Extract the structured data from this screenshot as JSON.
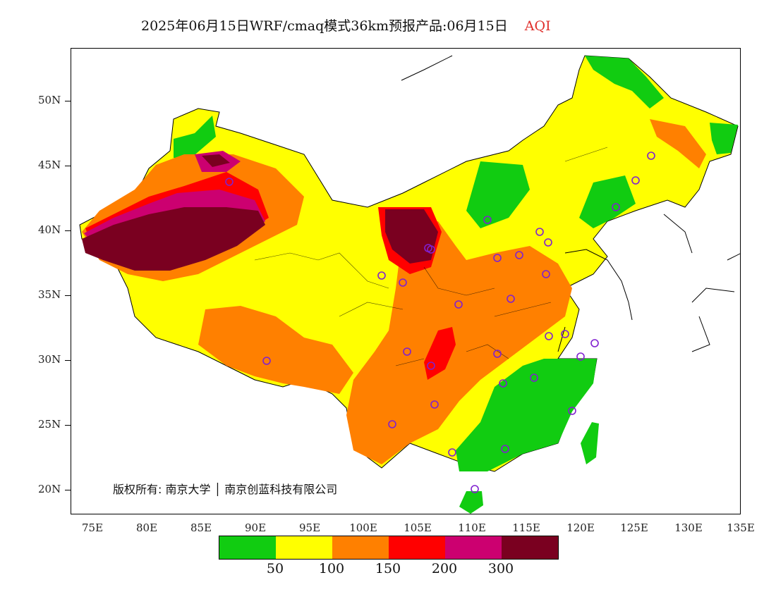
{
  "title": {
    "main": "2025年06月15日WRF/cmaq模式36km预报产品:06月15日",
    "variable": "AQI"
  },
  "axes": {
    "lat_labels": [
      "50N",
      "45N",
      "40N",
      "35N",
      "30N",
      "25N",
      "20N"
    ],
    "lon_labels": [
      "75E",
      "80E",
      "85E",
      "90E",
      "95E",
      "100E",
      "105E",
      "110E",
      "115E",
      "120E",
      "125E",
      "130E",
      "135E"
    ]
  },
  "copyright": "版权所有: 南京大学 │ 南京创蓝科技有限公司",
  "legend": {
    "colors": [
      "#11cc11",
      "#ffff00",
      "#ff8000",
      "#ff0000",
      "#cc0070",
      "#7a0020"
    ],
    "labels": [
      "50",
      "100",
      "150",
      "200",
      "300"
    ]
  },
  "colors": {
    "outside": "#ffffff",
    "china_base": "#ffff00",
    "boundary": "#000000",
    "station": "#8020d0"
  }
}
